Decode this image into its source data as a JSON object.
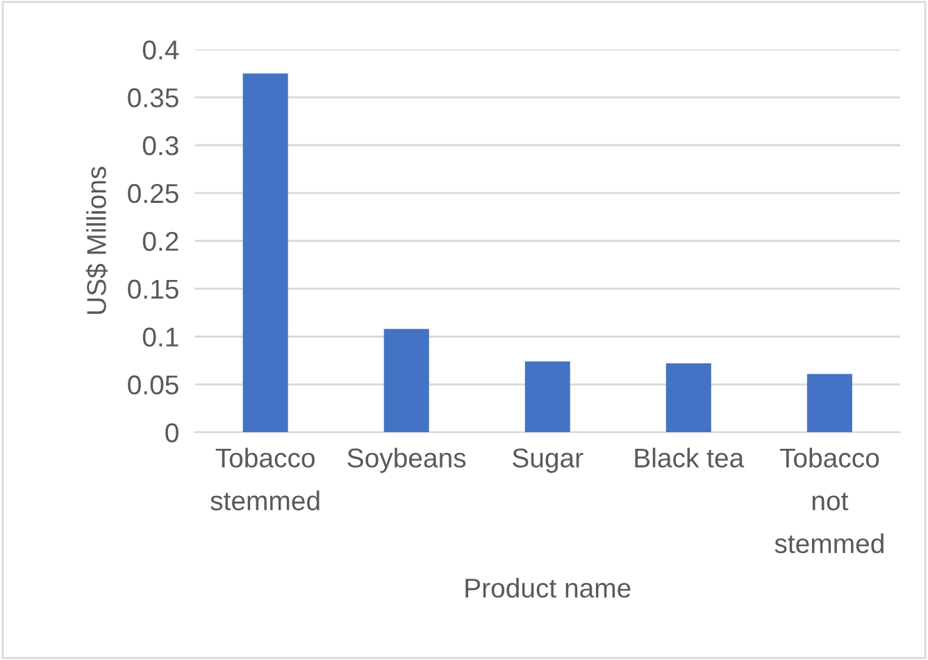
{
  "chart_data": {
    "type": "bar",
    "xlabel": "Product name",
    "ylabel": "US$ Millions",
    "categories": [
      "Tobacco\nstemmed",
      "Soybeans",
      "Sugar",
      "Black tea",
      "Tobacco\nnot\nstemmed"
    ],
    "values": [
      0.375,
      0.108,
      0.074,
      0.072,
      0.061
    ],
    "color": "#4472c4",
    "ylim": [
      0,
      0.4
    ],
    "yticks": [
      0,
      0.05,
      0.1,
      0.15,
      0.2,
      0.25,
      0.3,
      0.35,
      0.4
    ],
    "grid": "y",
    "legend": false
  }
}
